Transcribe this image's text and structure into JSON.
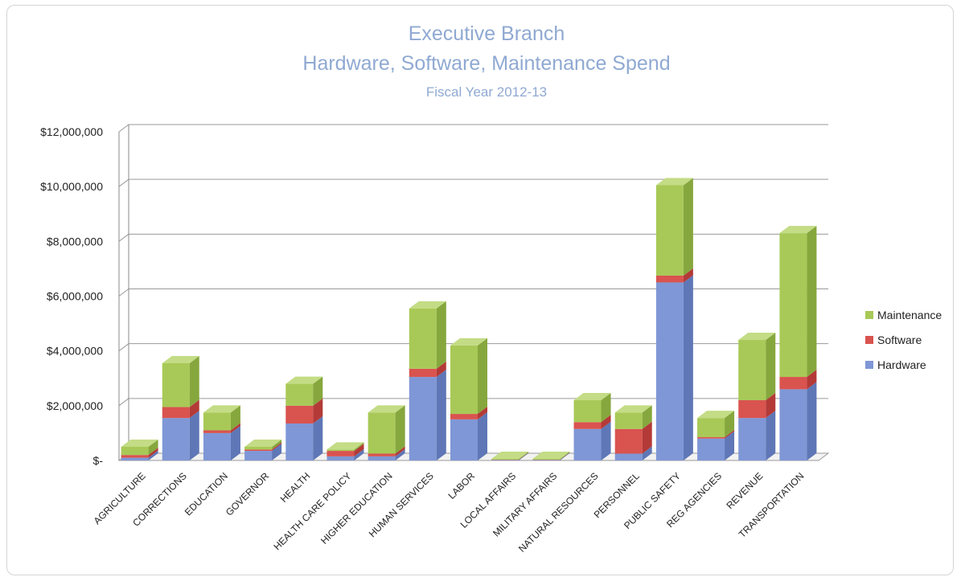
{
  "chart_data": {
    "type": "bar",
    "stacked": true,
    "three_d": true,
    "title": "Executive Branch",
    "subtitle": "Hardware, Software, Maintenance Spend",
    "subtitle2": "Fiscal Year 2012-13",
    "xlabel": "",
    "ylabel": "",
    "ylim": [
      0,
      12000000
    ],
    "yticks": [
      {
        "value": 0,
        "label": "$-"
      },
      {
        "value": 2000000,
        "label": "$2,000,000"
      },
      {
        "value": 4000000,
        "label": "$4,000,000"
      },
      {
        "value": 6000000,
        "label": "$6,000,000"
      },
      {
        "value": 8000000,
        "label": "$8,000,000"
      },
      {
        "value": 10000000,
        "label": "$10,000,000"
      },
      {
        "value": 12000000,
        "label": "$12,000,000"
      }
    ],
    "grid": true,
    "legend_position": "right",
    "categories": [
      "AGRICULTURE",
      "CORRECTIONS",
      "EDUCATION",
      "GOVERNOR",
      "HEALTH",
      "HEALTH CARE POLICY",
      "HIGHER EDUCATION",
      "HUMAN SERVICES",
      "LABOR",
      "LOCAL AFFAIRS",
      "MILITARY AFFAIRS",
      "NATURAL RESOURCES",
      "PERSONNEL",
      "PUBLIC SAFETY",
      "REG AGENCIES",
      "REVENUE",
      "TRANSPORTATION"
    ],
    "series": [
      {
        "name": "Hardware",
        "color": "#7f97d6",
        "side": "#5f77b6",
        "top": "#a6b8e4",
        "values": [
          100000,
          1550000,
          1000000,
          350000,
          1350000,
          150000,
          150000,
          3050000,
          1500000,
          20000,
          20000,
          1150000,
          250000,
          6500000,
          800000,
          1550000,
          2600000
        ]
      },
      {
        "name": "Software",
        "color": "#d9534f",
        "side": "#b43a37",
        "top": "#e88a87",
        "values": [
          100000,
          400000,
          100000,
          50000,
          650000,
          200000,
          100000,
          300000,
          200000,
          10000,
          10000,
          250000,
          900000,
          250000,
          50000,
          650000,
          450000
        ]
      },
      {
        "name": "Maintenance",
        "color": "#a8c957",
        "side": "#86a73d",
        "top": "#c3dc85",
        "values": [
          300000,
          1600000,
          650000,
          100000,
          800000,
          50000,
          1500000,
          2200000,
          2500000,
          30000,
          30000,
          800000,
          600000,
          3300000,
          700000,
          2200000,
          5250000
        ]
      }
    ],
    "legend_order": [
      "Maintenance",
      "Software",
      "Hardware"
    ]
  }
}
